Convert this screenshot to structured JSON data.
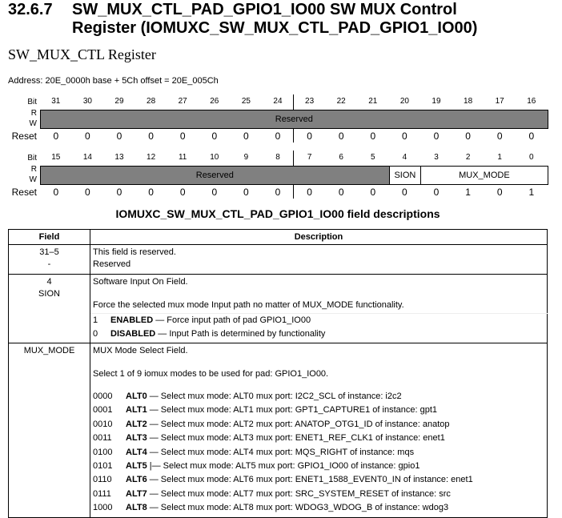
{
  "heading": {
    "number": "32.6.7",
    "line1": "SW_MUX_CTL_PAD_GPIO1_IO00 SW MUX Control",
    "line2": "Register (IOMUXC_SW_MUX_CTL_PAD_GPIO1_IO00)"
  },
  "subtitle": "SW_MUX_CTL Register",
  "address": "Address: 20E_0000h base + 5Ch offset = 20E_005Ch",
  "register": {
    "labels": {
      "bit": "Bit",
      "r": "R",
      "w": "W",
      "reset": "Reset"
    },
    "upper": {
      "bits": [
        "31",
        "30",
        "29",
        "28",
        "27",
        "26",
        "25",
        "24",
        "23",
        "22",
        "21",
        "20",
        "19",
        "18",
        "17",
        "16"
      ],
      "reset": [
        "0",
        "0",
        "0",
        "0",
        "0",
        "0",
        "0",
        "0",
        "0",
        "0",
        "0",
        "0",
        "0",
        "0",
        "0",
        "0"
      ],
      "fields": [
        {
          "name": "Reserved",
          "span": 16,
          "reserved": true
        }
      ]
    },
    "lower": {
      "bits": [
        "15",
        "14",
        "13",
        "12",
        "11",
        "10",
        "9",
        "8",
        "7",
        "6",
        "5",
        "4",
        "3",
        "2",
        "1",
        "0"
      ],
      "reset": [
        "0",
        "0",
        "0",
        "0",
        "0",
        "0",
        "0",
        "0",
        "0",
        "0",
        "0",
        "0",
        "0",
        "1",
        "0",
        "1"
      ],
      "fields": [
        {
          "name": "Reserved",
          "span": 11,
          "reserved": true
        },
        {
          "name": "SION",
          "span": 1,
          "reserved": false
        },
        {
          "name": "MUX_MODE",
          "span": 4,
          "reserved": false
        }
      ]
    }
  },
  "table": {
    "title": "IOMUXC_SW_MUX_CTL_PAD_GPIO1_IO00 field descriptions",
    "headers": [
      "Field",
      "Description"
    ],
    "rows": [
      {
        "field1": "31–5",
        "field2": "-",
        "desc": [
          "This field is reserved.",
          "Reserved"
        ]
      },
      {
        "field1": "4",
        "field2": "SION",
        "desc": [
          "Software Input On Field.",
          "Force the selected mux mode Input path no matter of MUX_MODE functionality."
        ],
        "values": [
          {
            "code": "1",
            "name": "ENABLED",
            "text": " — Force input path of pad GPIO1_IO00"
          },
          {
            "code": "0",
            "name": "DISABLED",
            "text": " — Input Path is determined by functionality"
          }
        ]
      },
      {
        "field1": "MUX_MODE",
        "desc": [
          "MUX Mode Select Field.",
          "Select 1 of 9 iomux modes to be used for pad: GPIO1_IO00."
        ],
        "values": [
          {
            "code": "0000",
            "name": "ALT0",
            "text": " — Select mux mode: ALT0 mux port: I2C2_SCL of instance: i2c2"
          },
          {
            "code": "0001",
            "name": "ALT1",
            "text": " — Select mux mode: ALT1 mux port: GPT1_CAPTURE1 of instance: gpt1"
          },
          {
            "code": "0010",
            "name": "ALT2",
            "text": " — Select mux mode: ALT2 mux port: ANATOP_OTG1_ID of instance: anatop"
          },
          {
            "code": "0011",
            "name": "ALT3",
            "text": " — Select mux mode: ALT3 mux port: ENET1_REF_CLK1 of instance: enet1"
          },
          {
            "code": "0100",
            "name": "ALT4",
            "text": " — Select mux mode: ALT4 mux port: MQS_RIGHT of instance: mqs"
          },
          {
            "code": "0101",
            "name": "ALT5",
            "text": " |— Select mux mode: ALT5 mux port: GPIO1_IO00 of instance: gpio1"
          },
          {
            "code": "0110",
            "name": "ALT6",
            "text": " — Select mux mode: ALT6 mux port: ENET1_1588_EVENT0_IN of instance: enet1"
          },
          {
            "code": "0111",
            "name": "ALT7",
            "text": " — Select mux mode: ALT7 mux port: SRC_SYSTEM_RESET of instance: src"
          },
          {
            "code": "1000",
            "name": "ALT8",
            "text": " — Select mux mode: ALT8 mux port: WDOG3_WDOG_B of instance: wdog3"
          }
        ]
      }
    ]
  }
}
